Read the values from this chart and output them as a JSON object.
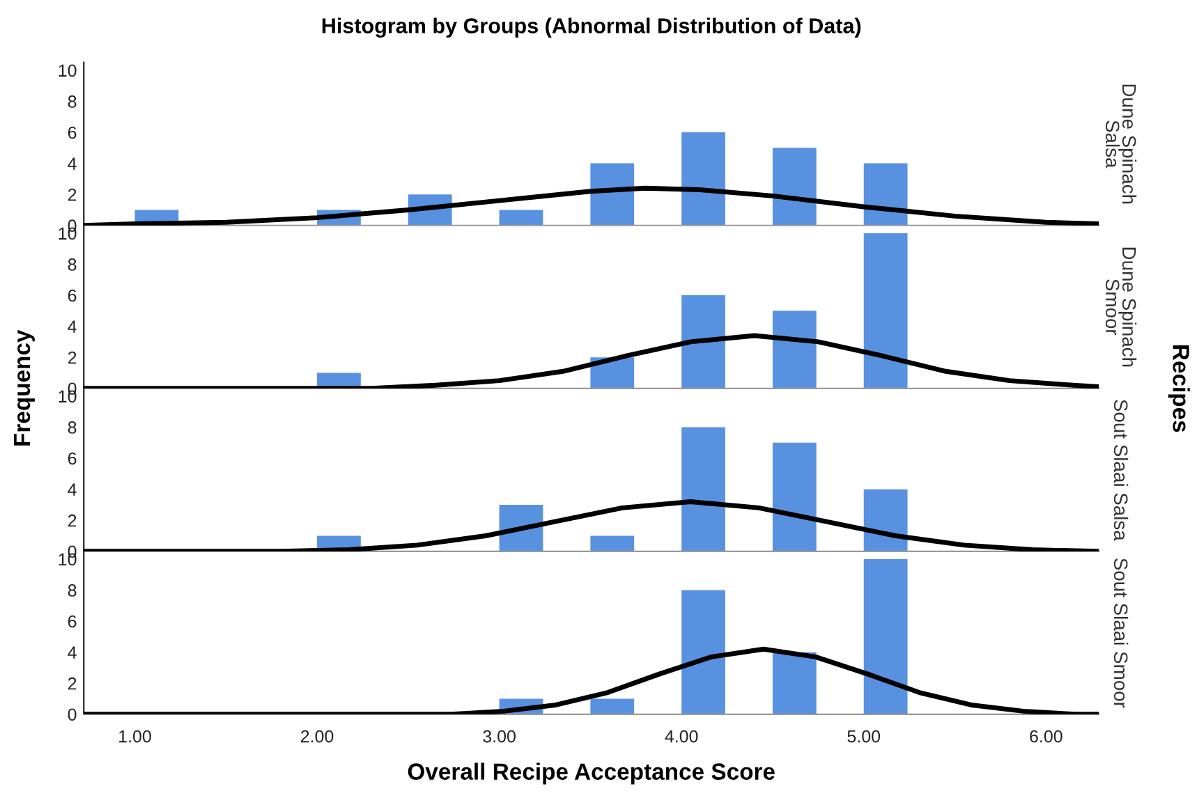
{
  "chart_data": [
    {
      "type": "histogram",
      "title": "Histogram by Groups (Abnormal Distribution of Data)",
      "y2label": "Dune Spinach\nSalsa",
      "bins": [
        1.0,
        1.25,
        1.5,
        1.75,
        2.0,
        2.25,
        2.5,
        2.75,
        3.0,
        3.25,
        3.5,
        3.75,
        4.0,
        4.25,
        4.5,
        4.75,
        5.0,
        5.25
      ],
      "values": [
        1,
        0,
        0,
        0,
        1,
        0,
        2,
        0,
        1,
        0,
        4,
        0,
        6,
        0,
        5,
        0,
        4
      ],
      "color": "#5891e0",
      "xlim": [
        0.72,
        6.29
      ],
      "ylim": [
        0,
        10.5
      ],
      "yticks": [
        0,
        2,
        4,
        6,
        8,
        10
      ],
      "tick_labels": "y",
      "grid": false,
      "series": [
        {
          "type": "line",
          "color": "#000000",
          "x": [
            0.72,
            1.0,
            1.5,
            2.0,
            2.5,
            3.0,
            3.5,
            3.8,
            4.1,
            4.5,
            5.0,
            5.5,
            6.0,
            6.29
          ],
          "values": [
            0.0,
            0.1,
            0.2,
            0.5,
            1.0,
            1.6,
            2.2,
            2.4,
            2.3,
            1.9,
            1.2,
            0.6,
            0.2,
            0.1
          ]
        }
      ]
    },
    {
      "type": "histogram",
      "y2label": "Dune Spinach\nSmoor",
      "ylabel": "Frequency",
      "annotations": [
        "Recipes"
      ],
      "bins": [
        1.0,
        1.25,
        1.5,
        1.75,
        2.0,
        2.25,
        2.5,
        2.75,
        3.0,
        3.25,
        3.5,
        3.75,
        4.0,
        4.25,
        4.5,
        4.75,
        5.0,
        5.25
      ],
      "values": [
        0,
        0,
        0,
        0,
        1,
        0,
        0,
        0,
        0,
        0,
        2,
        0,
        6,
        0,
        5,
        0,
        10
      ],
      "color": "#5891e0",
      "xlim": [
        0.72,
        6.29
      ],
      "ylim": [
        0,
        10.5
      ],
      "yticks": [
        0,
        2,
        4,
        6,
        8,
        10
      ],
      "tick_labels": "y",
      "grid": false,
      "series": [
        {
          "type": "line",
          "color": "#000000",
          "x": [
            0.72,
            2.0,
            2.3,
            2.65,
            3.0,
            3.35,
            3.7,
            4.05,
            4.4,
            4.75,
            5.1,
            5.45,
            5.8,
            6.15,
            6.29
          ],
          "values": [
            0.0,
            0.0,
            0.0,
            0.2,
            0.5,
            1.1,
            2.1,
            3.0,
            3.4,
            3.0,
            2.1,
            1.1,
            0.5,
            0.2,
            0.1
          ]
        }
      ]
    },
    {
      "type": "histogram",
      "y2label": "Sout Slaai Salsa",
      "bins": [
        1.0,
        1.25,
        1.5,
        1.75,
        2.0,
        2.25,
        2.5,
        2.75,
        3.0,
        3.25,
        3.5,
        3.75,
        4.0,
        4.25,
        4.5,
        4.75,
        5.0,
        5.25
      ],
      "values": [
        0,
        0,
        0,
        0,
        1,
        0,
        0,
        0,
        3,
        0,
        1,
        0,
        8,
        0,
        7,
        0,
        4
      ],
      "color": "#5891e0",
      "xlim": [
        0.72,
        6.29
      ],
      "ylim": [
        0,
        10.5
      ],
      "yticks": [
        0,
        2,
        4,
        6,
        8,
        10
      ],
      "tick_labels": "y",
      "grid": false,
      "series": [
        {
          "type": "line",
          "color": "#000000",
          "x": [
            0.72,
            1.5,
            1.8,
            2.175,
            2.55,
            2.925,
            3.3,
            3.675,
            4.05,
            4.425,
            4.8,
            5.175,
            5.55,
            5.925,
            6.29
          ],
          "values": [
            0.0,
            0.0,
            0.0,
            0.1,
            0.4,
            1.0,
            1.9,
            2.8,
            3.2,
            2.8,
            1.9,
            1.0,
            0.4,
            0.1,
            0.0
          ]
        }
      ]
    },
    {
      "type": "histogram",
      "y2label": "Sout Slaai Smoor",
      "xlabel": "Overall Recipe Acceptance Score",
      "bins": [
        1.0,
        1.25,
        1.5,
        1.75,
        2.0,
        2.25,
        2.5,
        2.75,
        3.0,
        3.25,
        3.5,
        3.75,
        4.0,
        4.25,
        4.5,
        4.75,
        5.0,
        5.25
      ],
      "values": [
        0,
        0,
        0,
        0,
        0,
        0,
        0,
        0,
        1,
        0,
        1,
        0,
        8,
        0,
        4,
        0,
        10
      ],
      "color": "#5891e0",
      "xlim": [
        0.72,
        6.29
      ],
      "ylim": [
        0,
        10.5
      ],
      "yticks": [
        0,
        2,
        4,
        6,
        8,
        10
      ],
      "xticks": [
        {
          "value": 1,
          "label": "1.00"
        },
        {
          "value": 2,
          "label": "2.00"
        },
        {
          "value": 3,
          "label": "3.00"
        },
        {
          "value": 4,
          "label": "4.00"
        },
        {
          "value": 5,
          "label": "5.00"
        },
        {
          "value": 6,
          "label": "6.00"
        }
      ],
      "grid": false,
      "series": [
        {
          "type": "line",
          "color": "#000000",
          "x": [
            0.72,
            2.0,
            2.74,
            3.025,
            3.31,
            3.595,
            3.88,
            4.165,
            4.45,
            4.735,
            5.02,
            5.305,
            5.59,
            5.875,
            6.16,
            6.29
          ],
          "values": [
            0.0,
            0.0,
            0.0,
            0.2,
            0.6,
            1.4,
            2.6,
            3.7,
            4.2,
            3.7,
            2.6,
            1.4,
            0.6,
            0.2,
            0.0,
            0.0
          ]
        }
      ]
    }
  ]
}
